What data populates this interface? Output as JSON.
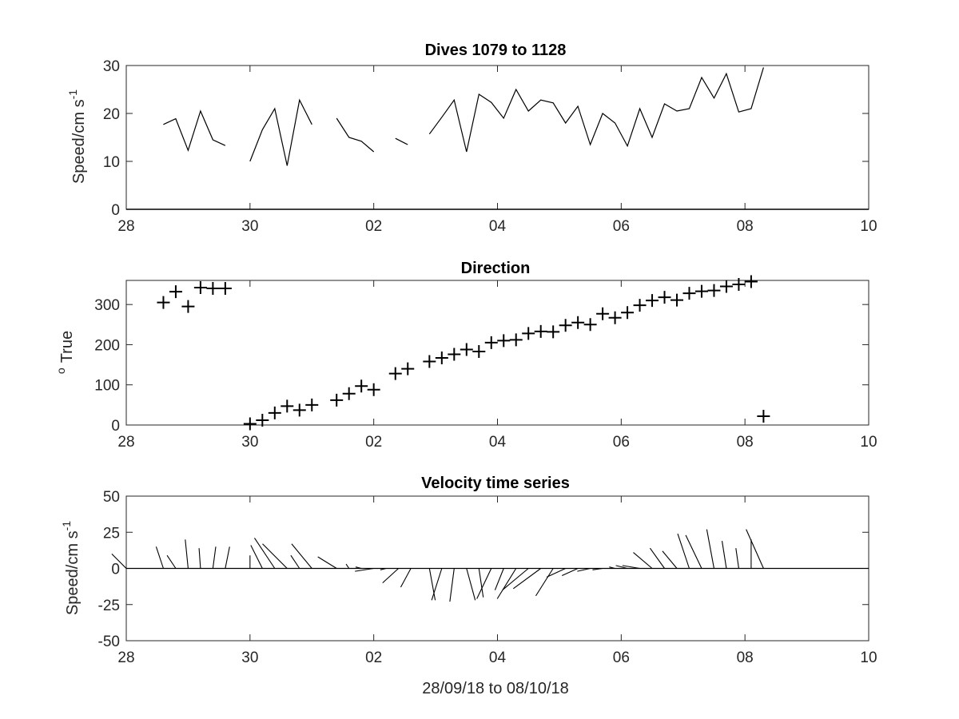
{
  "figure": {
    "xlabel": "28/09/18 to 08/10/18"
  },
  "chart_data": [
    {
      "type": "line",
      "title": "Dives 1079 to 1128",
      "ylabel": "Speed/cm s",
      "ylabel_sup": "-1",
      "xlim": [
        0,
        12
      ],
      "ylim": [
        0,
        30
      ],
      "xticks": [
        0,
        2,
        4,
        6,
        8,
        10,
        12
      ],
      "xticklabels": [
        "28",
        "30",
        "02",
        "04",
        "06",
        "08",
        "10"
      ],
      "yticks": [
        0,
        10,
        20,
        30
      ],
      "yticklabels": [
        "0",
        "10",
        "20",
        "30"
      ],
      "color": "#000000",
      "segments": [
        [
          [
            0.6,
            17.7
          ],
          [
            0.8,
            18.9
          ],
          [
            1.0,
            12.3
          ],
          [
            1.2,
            20.5
          ],
          [
            1.4,
            14.5
          ],
          [
            1.6,
            13.3
          ]
        ],
        [
          [
            2.0,
            10.0
          ],
          [
            2.2,
            16.6
          ],
          [
            2.4,
            21.0
          ],
          [
            2.6,
            9.1
          ],
          [
            2.8,
            22.8
          ],
          [
            3.0,
            17.7
          ]
        ],
        [
          [
            3.4,
            19.0
          ],
          [
            3.6,
            15.0
          ],
          [
            3.8,
            14.2
          ],
          [
            4.0,
            12.0
          ]
        ],
        [
          [
            4.35,
            14.8
          ],
          [
            4.55,
            13.5
          ]
        ],
        [
          [
            4.9,
            15.7
          ],
          [
            5.1,
            19.2
          ],
          [
            5.3,
            22.8
          ],
          [
            5.5,
            12.0
          ],
          [
            5.7,
            24.0
          ],
          [
            5.9,
            22.3
          ],
          [
            6.1,
            19.0
          ],
          [
            6.3,
            25.0
          ],
          [
            6.5,
            20.5
          ],
          [
            6.7,
            22.8
          ],
          [
            6.9,
            22.2
          ],
          [
            7.1,
            18.0
          ],
          [
            7.3,
            21.5
          ],
          [
            7.5,
            13.5
          ],
          [
            7.7,
            20.0
          ],
          [
            7.9,
            18.0
          ],
          [
            8.1,
            13.2
          ],
          [
            8.3,
            21.0
          ],
          [
            8.5,
            15.0
          ],
          [
            8.7,
            22.0
          ],
          [
            8.9,
            20.5
          ],
          [
            9.1,
            21.0
          ],
          [
            9.3,
            27.5
          ],
          [
            9.5,
            23.2
          ],
          [
            9.7,
            28.3
          ],
          [
            9.9,
            20.3
          ],
          [
            10.1,
            21.0
          ],
          [
            10.3,
            29.6
          ]
        ]
      ]
    },
    {
      "type": "scatter",
      "title": "Direction",
      "ylabel": "True",
      "ylabel_sup": "o",
      "marker": "+",
      "xlim": [
        0,
        12
      ],
      "ylim": [
        0,
        360
      ],
      "xticks": [
        0,
        2,
        4,
        6,
        8,
        10,
        12
      ],
      "xticklabels": [
        "28",
        "30",
        "02",
        "04",
        "06",
        "08",
        "10"
      ],
      "yticks": [
        0,
        100,
        200,
        300
      ],
      "yticklabels": [
        "0",
        "100",
        "200",
        "300"
      ],
      "color": "#000000",
      "points": [
        [
          0.6,
          305
        ],
        [
          0.8,
          332
        ],
        [
          1.0,
          295
        ],
        [
          1.2,
          342
        ],
        [
          1.4,
          340
        ],
        [
          1.6,
          340
        ],
        [
          2.0,
          3
        ],
        [
          2.2,
          12
        ],
        [
          2.4,
          30
        ],
        [
          2.6,
          47
        ],
        [
          2.8,
          37
        ],
        [
          3.0,
          50
        ],
        [
          3.4,
          62
        ],
        [
          3.6,
          78
        ],
        [
          3.8,
          97
        ],
        [
          4.0,
          88
        ],
        [
          4.35,
          128
        ],
        [
          4.55,
          140
        ],
        [
          4.9,
          158
        ],
        [
          5.1,
          167
        ],
        [
          5.3,
          176
        ],
        [
          5.5,
          188
        ],
        [
          5.7,
          183
        ],
        [
          5.9,
          205
        ],
        [
          6.1,
          210
        ],
        [
          6.3,
          212
        ],
        [
          6.5,
          228
        ],
        [
          6.7,
          233
        ],
        [
          6.9,
          232
        ],
        [
          7.1,
          248
        ],
        [
          7.3,
          255
        ],
        [
          7.5,
          250
        ],
        [
          7.7,
          277
        ],
        [
          7.9,
          267
        ],
        [
          8.1,
          280
        ],
        [
          8.3,
          298
        ],
        [
          8.5,
          310
        ],
        [
          8.7,
          318
        ],
        [
          8.9,
          311
        ],
        [
          9.1,
          328
        ],
        [
          9.3,
          333
        ],
        [
          9.5,
          335
        ],
        [
          9.7,
          345
        ],
        [
          9.9,
          350
        ],
        [
          10.1,
          357
        ],
        [
          10.3,
          22
        ]
      ]
    },
    {
      "type": "line",
      "subtype": "stick",
      "title": "Velocity time series",
      "ylabel": "Speed/cm s",
      "ylabel_sup": "-1",
      "xlim": [
        0,
        12
      ],
      "ylim": [
        -50,
        50
      ],
      "xticks": [
        0,
        2,
        4,
        6,
        8,
        10,
        12
      ],
      "xticklabels": [
        "28",
        "30",
        "02",
        "04",
        "06",
        "08",
        "10"
      ],
      "yticks": [
        -50,
        -25,
        0,
        25,
        50
      ],
      "yticklabels": [
        "-50",
        "-25",
        "0",
        "25",
        "50"
      ],
      "zero_line": true,
      "color": "#000000",
      "sticks": [
        [
          0.0,
          10,
          -10
        ],
        [
          0.6,
          15,
          -5
        ],
        [
          0.8,
          9,
          -6
        ],
        [
          1.0,
          20,
          -2
        ],
        [
          1.2,
          14,
          -1
        ],
        [
          1.4,
          15,
          2
        ],
        [
          1.6,
          15,
          3
        ],
        [
          2.0,
          9,
          0
        ],
        [
          2.2,
          16,
          -8
        ],
        [
          2.4,
          21,
          -14
        ],
        [
          2.6,
          17,
          -17
        ],
        [
          2.8,
          9,
          -6
        ],
        [
          3.0,
          17,
          -14
        ],
        [
          3.4,
          8,
          -13
        ],
        [
          3.6,
          3,
          -2
        ],
        [
          3.8,
          1,
          -4
        ],
        [
          4.0,
          -2,
          -13
        ],
        [
          4.2,
          -1,
          -4
        ],
        [
          4.4,
          -10,
          -11
        ],
        [
          4.6,
          -13,
          -7
        ],
        [
          4.9,
          -22,
          4
        ],
        [
          5.1,
          -22,
          -7
        ],
        [
          5.3,
          -23,
          -3
        ],
        [
          5.5,
          -22,
          6
        ],
        [
          5.7,
          -20,
          3
        ],
        [
          5.9,
          -21,
          -10
        ],
        [
          6.1,
          -15,
          -6
        ],
        [
          6.3,
          -21,
          -13
        ],
        [
          6.5,
          -15,
          -18
        ],
        [
          6.7,
          -14,
          -19
        ],
        [
          6.9,
          -19,
          -12
        ],
        [
          7.1,
          -6,
          -13
        ],
        [
          7.3,
          -5,
          -11
        ],
        [
          7.5,
          -2,
          -9
        ],
        [
          7.7,
          -1,
          -7
        ],
        [
          7.9,
          1,
          -4
        ],
        [
          8.1,
          2,
          -8
        ],
        [
          8.3,
          2,
          -12
        ],
        [
          8.5,
          11,
          -13
        ],
        [
          8.7,
          14,
          -10
        ],
        [
          8.9,
          12,
          -10
        ],
        [
          9.1,
          24,
          -8
        ],
        [
          9.3,
          23,
          -11
        ],
        [
          9.5,
          27,
          -5
        ],
        [
          9.7,
          19,
          -3
        ],
        [
          9.9,
          14,
          -2
        ],
        [
          10.1,
          20,
          0
        ],
        [
          10.3,
          27,
          -12
        ]
      ]
    }
  ]
}
